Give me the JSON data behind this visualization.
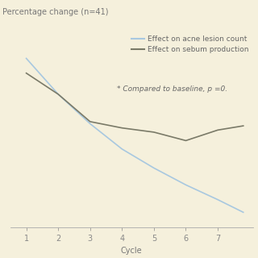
{
  "background_color": "#f5f0dc",
  "acne_x": [
    1,
    2,
    3,
    4,
    5,
    6,
    7,
    7.8
  ],
  "acne_y": [
    -5,
    -22,
    -36,
    -48,
    -57,
    -65,
    -72,
    -78
  ],
  "sebum_x": [
    1,
    2,
    3,
    4,
    5,
    6,
    7,
    7.8
  ],
  "sebum_y": [
    -12,
    -22,
    -35,
    -38,
    -40,
    -44,
    -39,
    -37
  ],
  "acne_color": "#a8c8e0",
  "sebum_color": "#7a7a68",
  "xlabel": "Cycle",
  "ylabel": "Percentage change (n=41)",
  "legend_acne": "Effect on acne lesion count",
  "legend_sebum": "Effect on sebum production",
  "annotation": "* Compared to baseline, p =0.",
  "xlim": [
    0.5,
    8.1
  ],
  "ylim": [
    -85,
    8
  ],
  "xticks": [
    1,
    2,
    3,
    4,
    5,
    6,
    7
  ],
  "axis_fontsize": 7,
  "legend_fontsize": 6.5,
  "annotation_fontsize": 6.5,
  "linewidth": 1.2
}
